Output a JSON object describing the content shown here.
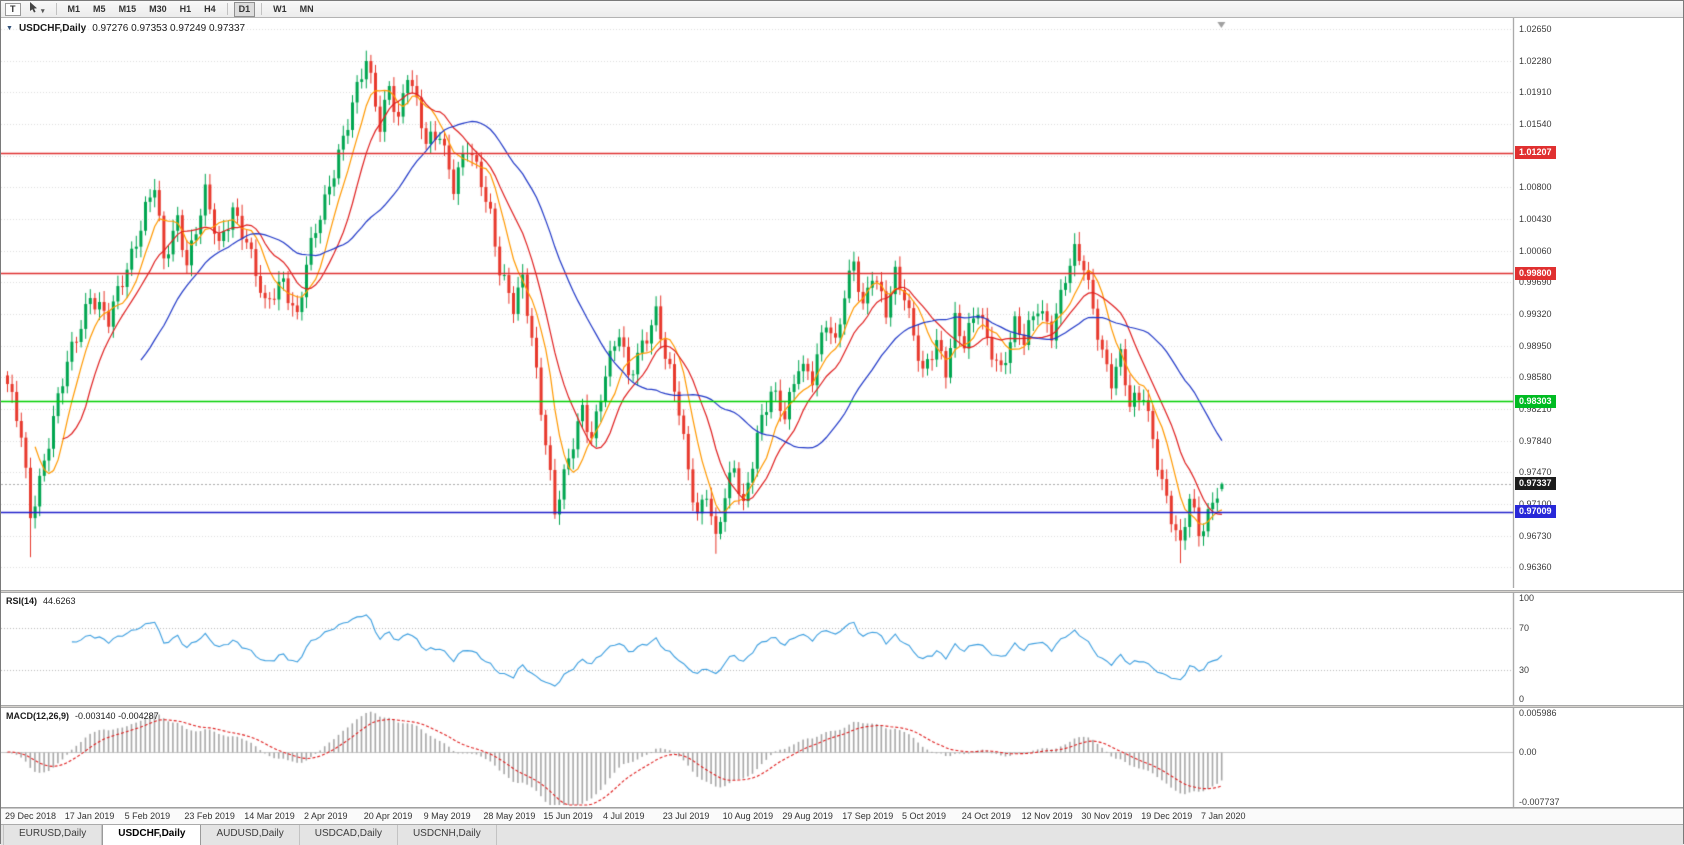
{
  "toolbar": {
    "text_tool_label": "T",
    "timeframes": [
      "M1",
      "M5",
      "M15",
      "M30",
      "H1",
      "H4",
      "D1",
      "W1",
      "MN"
    ],
    "active_timeframe": "D1"
  },
  "chart": {
    "symbol_label": "USDCHF,Daily",
    "ohlc_text": "0.97276 0.97353 0.97249 0.97337",
    "price_axis_labels": [
      "1.02650",
      "1.02280",
      "1.01910",
      "1.01540",
      "1.01170",
      "1.00800",
      "1.00430",
      "1.00060",
      "0.99690",
      "0.99320",
      "0.98950",
      "0.98580",
      "0.98210",
      "0.97840",
      "0.97470",
      "0.97100",
      "0.96730",
      "0.96360"
    ],
    "badges": [
      {
        "label": "1.01207",
        "value": 1.01207,
        "color": "#e03030"
      },
      {
        "label": "0.99800",
        "value": 0.998,
        "color": "#e03030"
      },
      {
        "label": "0.98303",
        "value": 0.98303,
        "color": "#00bb22"
      },
      {
        "label": "0.97337",
        "value": 0.97337,
        "color": "#1c1c1c"
      },
      {
        "label": "0.97009",
        "value": 0.97009,
        "color": "#2828d8"
      }
    ]
  },
  "rsi": {
    "name_label": "RSI(14)",
    "value_label": "44.6263",
    "axis_labels": [
      "100",
      "70",
      "30",
      "0"
    ]
  },
  "macd": {
    "name_label": "MACD(12,26,9)",
    "values_label": "-0.003140 -0.004287",
    "axis_labels": [
      "0.005986",
      "0.00",
      "-0.007737"
    ]
  },
  "date_axis_labels": [
    "29 Dec 2018",
    "17 Jan 2019",
    "5 Feb 2019",
    "23 Feb 2019",
    "14 Mar 2019",
    "2 Apr 2019",
    "20 Apr 2019",
    "9 May 2019",
    "28 May 2019",
    "15 Jun 2019",
    "4 Jul 2019",
    "23 Jul 2019",
    "10 Aug 2019",
    "29 Aug 2019",
    "17 Sep 2019",
    "5 Oct 2019",
    "24 Oct 2019",
    "12 Nov 2019",
    "30 Nov 2019",
    "19 Dec 2019",
    "7 Jan 2020"
  ],
  "tabs": {
    "items": [
      {
        "label": "EURUSD,Daily",
        "active": false
      },
      {
        "label": "USDCHF,Daily",
        "active": true
      },
      {
        "label": "AUDUSD,Daily",
        "active": false
      },
      {
        "label": "USDCAD,Daily",
        "active": false
      },
      {
        "label": "USDCNH,Daily",
        "active": false
      }
    ]
  },
  "chart_data": [
    {
      "type": "candlestick",
      "title": "USDCHF,Daily",
      "candle_count": 265,
      "candles_per_date_label": 13,
      "last_candle": {
        "open": 0.97276,
        "high": 0.97353,
        "low": 0.97249,
        "close": 0.97337
      },
      "price_range": {
        "top": 1.0278,
        "bottom": 0.9612
      },
      "grid_top": 1.0265,
      "grid_step": 0.0037,
      "up_color": "#00a650",
      "down_color": "#e8392d",
      "moving_averages": [
        {
          "type": "sma",
          "period": 7,
          "color": "#ff9900"
        },
        {
          "type": "sma",
          "period": 13,
          "color": "#e02020"
        },
        {
          "type": "sma",
          "period": 30,
          "color": "#2038c8"
        }
      ],
      "horizontal_lines": [
        {
          "value": 1.01207,
          "color": "#e03030"
        },
        {
          "value": 0.998,
          "color": "#e03030"
        },
        {
          "value": 0.98303,
          "color": "#00d000"
        },
        {
          "value": 0.97009,
          "color": "#2020cc"
        }
      ],
      "current_price_line": {
        "value": 0.97337,
        "color": "#aaaaaa"
      },
      "close_anchors": [
        [
          0,
          0.9845
        ],
        [
          3,
          0.979
        ],
        [
          5,
          0.97
        ],
        [
          8,
          0.9762
        ],
        [
          13,
          0.9872
        ],
        [
          18,
          0.9958
        ],
        [
          22,
          0.9921
        ],
        [
          26,
          0.9986
        ],
        [
          30,
          1.0058
        ],
        [
          32,
          1.0082
        ],
        [
          34,
          0.9988
        ],
        [
          37,
          1.0042
        ],
        [
          39,
          0.9996
        ],
        [
          43,
          1.0072
        ],
        [
          46,
          1.0006
        ],
        [
          49,
          1.0058
        ],
        [
          52,
          1.0021
        ],
        [
          56,
          0.9936
        ],
        [
          60,
          0.9974
        ],
        [
          63,
          0.9931
        ],
        [
          65,
          0.9989
        ],
        [
          69,
          1.0061
        ],
        [
          72,
          1.0124
        ],
        [
          75,
          1.0178
        ],
        [
          78,
          1.0224
        ],
        [
          81,
          1.0152
        ],
        [
          83,
          1.0204
        ],
        [
          85,
          1.0161
        ],
        [
          87,
          1.0212
        ],
        [
          91,
          1.0131
        ],
        [
          94,
          1.0149
        ],
        [
          97,
          1.0082
        ],
        [
          100,
          1.0123
        ],
        [
          103,
          1.0088
        ],
        [
          105,
          1.0052
        ],
        [
          107,
          0.9988
        ],
        [
          110,
          0.9936
        ],
        [
          112,
          0.9968
        ],
        [
          114,
          0.9904
        ],
        [
          117,
          0.9788
        ],
        [
          119,
          0.9702
        ],
        [
          122,
          0.9756
        ],
        [
          125,
          0.9821
        ],
        [
          127,
          0.9792
        ],
        [
          130,
          0.9864
        ],
        [
          133,
          0.9906
        ],
        [
          135,
          0.9856
        ],
        [
          138,
          0.9901
        ],
        [
          141,
          0.9934
        ],
        [
          143,
          0.9879
        ],
        [
          146,
          0.9818
        ],
        [
          148,
          0.9752
        ],
        [
          150,
          0.9701
        ],
        [
          152,
          0.9726
        ],
        [
          154,
          0.9662
        ],
        [
          156,
          0.9716
        ],
        [
          158,
          0.9754
        ],
        [
          160,
          0.9712
        ],
        [
          163,
          0.9791
        ],
        [
          166,
          0.9836
        ],
        [
          169,
          0.9814
        ],
        [
          172,
          0.9879
        ],
        [
          175,
          0.9856
        ],
        [
          178,
          0.9919
        ],
        [
          180,
          0.9896
        ],
        [
          182,
          0.9961
        ],
        [
          184,
          0.9999
        ],
        [
          186,
          0.9936
        ],
        [
          188,
          0.9974
        ],
        [
          191,
          0.9936
        ],
        [
          193,
          0.9984
        ],
        [
          195,
          0.9958
        ],
        [
          197,
          0.9906
        ],
        [
          199,
          0.9856
        ],
        [
          202,
          0.9899
        ],
        [
          204,
          0.9871
        ],
        [
          206,
          0.9929
        ],
        [
          208,
          0.9896
        ],
        [
          211,
          0.9934
        ],
        [
          213,
          0.9901
        ],
        [
          216,
          0.9871
        ],
        [
          219,
          0.9919
        ],
        [
          221,
          0.9896
        ],
        [
          224,
          0.9941
        ],
        [
          227,
          0.9916
        ],
        [
          230,
          0.9974
        ],
        [
          232,
          0.9999
        ],
        [
          234,
          0.9986
        ],
        [
          236,
          0.9941
        ],
        [
          238,
          0.9891
        ],
        [
          240,
          0.9856
        ],
        [
          242,
          0.9879
        ],
        [
          244,
          0.9821
        ],
        [
          247,
          0.9841
        ],
        [
          249,
          0.9791
        ],
        [
          251,
          0.9736
        ],
        [
          253,
          0.9691
        ],
        [
          255,
          0.9654
        ],
        [
          257,
          0.9719
        ],
        [
          259,
          0.9681
        ],
        [
          261,
          0.9701
        ],
        [
          263,
          0.9724
        ],
        [
          264,
          0.97337
        ]
      ],
      "wick_extremes": [
        {
          "index": 5,
          "low": 0.9648
        },
        {
          "index": 78,
          "high": 1.0232
        },
        {
          "index": 119,
          "low": 0.9693
        },
        {
          "index": 154,
          "low": 0.9652
        },
        {
          "index": 233,
          "high": 1.0028
        },
        {
          "index": 255,
          "low": 0.9641
        }
      ]
    },
    {
      "type": "line",
      "title": "RSI(14)",
      "period": 14,
      "source": "close",
      "current_value": 44.6263,
      "range": [
        0,
        100
      ],
      "levels": [
        30,
        70
      ],
      "line_color": "#3d9fe0",
      "level_color": "#b8b8b8"
    },
    {
      "type": "bar",
      "title": "MACD(12,26,9)",
      "fast": 12,
      "slow": 26,
      "signal": 9,
      "current_main": -0.00314,
      "current_signal": -0.004287,
      "range": [
        -0.007737,
        0.005986
      ],
      "histogram_color": "#a8a8a8",
      "signal_color": "#e02020"
    }
  ]
}
